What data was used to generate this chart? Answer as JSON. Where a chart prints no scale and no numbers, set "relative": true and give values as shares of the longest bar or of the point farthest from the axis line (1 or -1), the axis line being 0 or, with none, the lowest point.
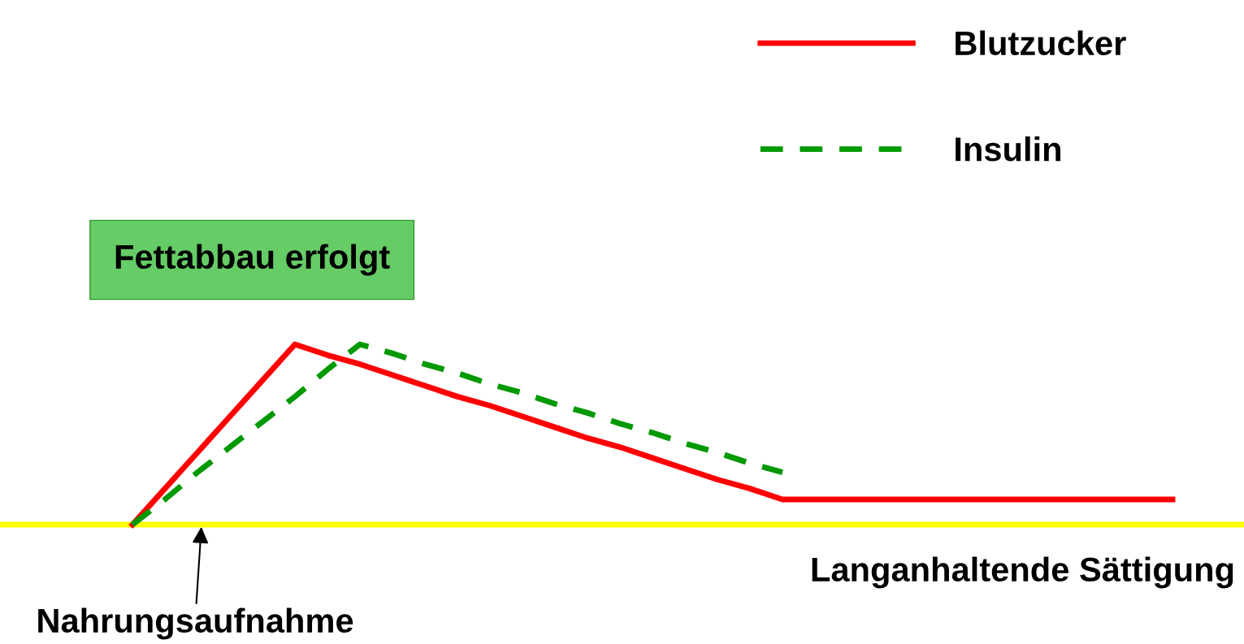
{
  "chart_data": {
    "type": "line",
    "relative": true,
    "categories": [
      null,
      null,
      null,
      null,
      null,
      null,
      null,
      null,
      null,
      null,
      null,
      null,
      null,
      null,
      null,
      null,
      null,
      null,
      null,
      null,
      null,
      null,
      null,
      null,
      null,
      null,
      null,
      null,
      null,
      null,
      null,
      null,
      null
    ],
    "series": [
      {
        "name": "Blutzucker",
        "color": "#ff0000",
        "line_style": "solid",
        "values": [
          0,
          0.2,
          0.4,
          0.6,
          0.8,
          1.0,
          0.94,
          0.89,
          0.83,
          0.77,
          0.71,
          0.66,
          0.6,
          0.54,
          0.48,
          0.43,
          0.37,
          0.31,
          0.25,
          0.2,
          0.14,
          0.14,
          0.14,
          0.14,
          0.14,
          0.14,
          0.14,
          0.14,
          0.14,
          0.14,
          0.14,
          0.14,
          0.14
        ]
      },
      {
        "name": "Insulin",
        "color": "#009900",
        "line_style": "dashed",
        "values": [
          0,
          0.14,
          0.29,
          0.43,
          0.57,
          0.71,
          0.86,
          1.0,
          0.95,
          0.89,
          0.84,
          0.78,
          0.73,
          0.67,
          0.62,
          0.56,
          0.51,
          0.45,
          0.4,
          0.34,
          0.29,
          null,
          null,
          null,
          null,
          null,
          null,
          null,
          null,
          null,
          null,
          null,
          null
        ]
      }
    ],
    "annotations": [
      "Fettabbau erfolgt",
      "Nahrungsaufnahme",
      "Langanhaltende Sättigung"
    ],
    "legend": "top right",
    "marker": "none"
  }
}
